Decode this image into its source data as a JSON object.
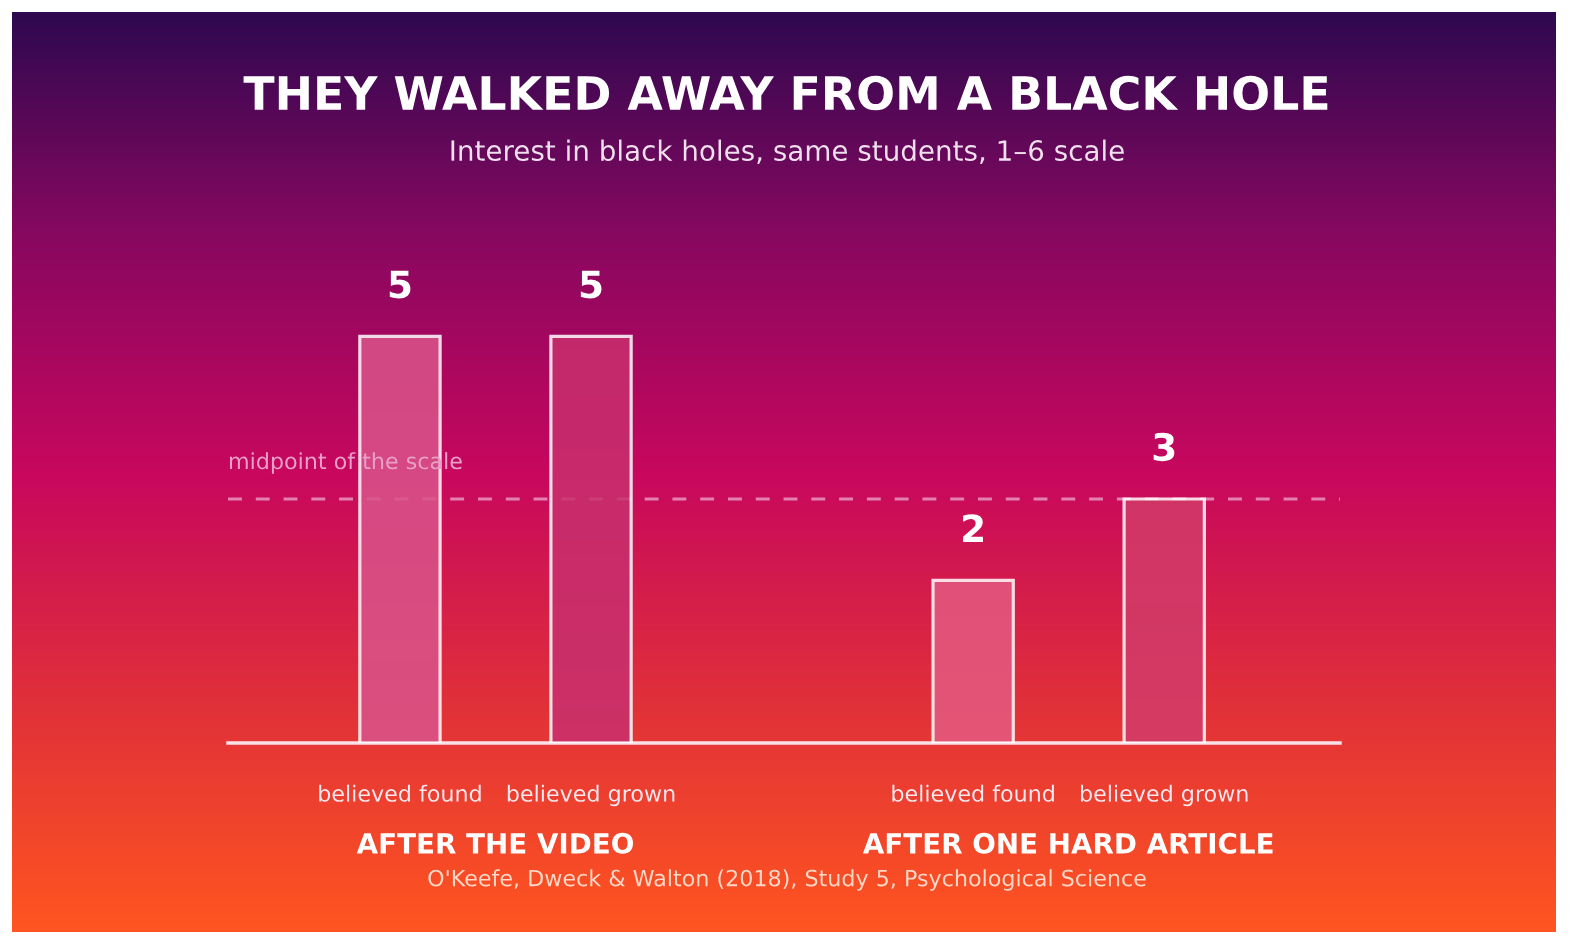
{
  "chart_data": {
    "type": "bar",
    "title": "THEY WALKED AWAY FROM A BLACK HOLE",
    "subtitle": "Interest in black holes, same students, 1–6 scale",
    "categories": [
      "believed found",
      "believed grown",
      null,
      "believed found",
      "believed grown"
    ],
    "values": [
      5,
      5,
      null,
      2,
      3
    ],
    "colors": [
      "#d9548a",
      "#c8306e",
      "#c8306e",
      "#e45a80",
      "#d23c6a"
    ],
    "data_labels": true,
    "grid": false,
    "legend": false,
    "ref_lines": [
      {
        "axis": "y",
        "value": 3,
        "label": "midpoint of the scale",
        "color": "#e8a0c8",
        "line_style": "dashed"
      }
    ],
    "annotations": [
      "AFTER THE VIDEO",
      "AFTER ONE HARD ARTICLE",
      "O'Keefe, Dweck & Walton (2018), Study 5, Psychological Science"
    ]
  }
}
